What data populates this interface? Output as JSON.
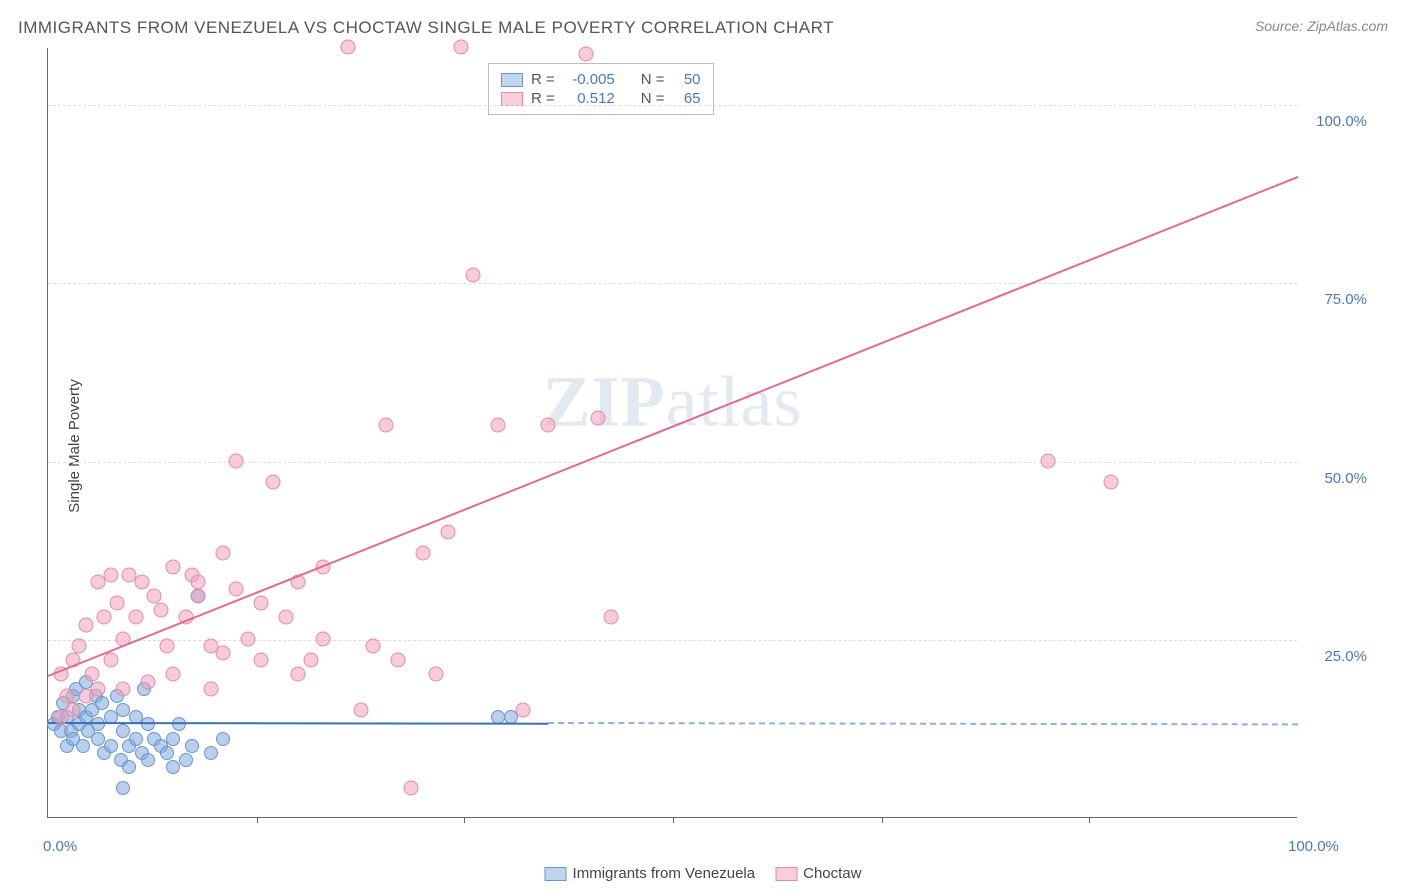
{
  "title": "IMMIGRANTS FROM VENEZUELA VS CHOCTAW SINGLE MALE POVERTY CORRELATION CHART",
  "source": "Source: ZipAtlas.com",
  "ylabel": "Single Male Poverty",
  "watermark_bold": "ZIP",
  "watermark_rest": "atlas",
  "chart": {
    "type": "scatter",
    "xlim": [
      0,
      100
    ],
    "ylim": [
      0,
      108
    ],
    "y_ticks": [
      25,
      50,
      75,
      100
    ],
    "y_tick_labels": [
      "25.0%",
      "50.0%",
      "75.0%",
      "100.0%"
    ],
    "x_ticks": [
      0,
      50,
      100
    ],
    "x_tick_labels": [
      "0.0%",
      "",
      "100.0%"
    ],
    "x_minor_ticks": [
      16.7,
      33.3,
      50,
      66.7,
      83.3
    ],
    "background_color": "#ffffff",
    "grid_color": "#dddddd",
    "axis_color": "#666666",
    "series": [
      {
        "name": "Immigrants from Venezuela",
        "color_fill": "rgba(128,170,220,0.55)",
        "color_stroke": "#6b95cf",
        "marker_size": 14,
        "R": "-0.005",
        "N": "50",
        "trend": {
          "x1": 0,
          "y1": 13.5,
          "x2": 40,
          "y2": 13.4,
          "color": "#3a6fb5",
          "width": 2
        },
        "trend_extrapolate": {
          "x1": 40,
          "y1": 13.4,
          "x2": 100,
          "y2": 13.2,
          "color": "#8fb0d8",
          "dash": true
        },
        "points": [
          [
            0.5,
            13
          ],
          [
            0.8,
            14
          ],
          [
            1,
            12
          ],
          [
            1.2,
            16
          ],
          [
            1.5,
            10
          ],
          [
            1.5,
            14
          ],
          [
            1.8,
            12
          ],
          [
            2,
            17
          ],
          [
            2,
            11
          ],
          [
            2.2,
            18
          ],
          [
            2.5,
            13
          ],
          [
            2.5,
            15
          ],
          [
            2.8,
            10
          ],
          [
            3,
            14
          ],
          [
            3,
            19
          ],
          [
            3.2,
            12
          ],
          [
            3.5,
            15
          ],
          [
            3.8,
            17
          ],
          [
            4,
            11
          ],
          [
            4,
            13
          ],
          [
            4.3,
            16
          ],
          [
            4.5,
            9
          ],
          [
            5,
            14
          ],
          [
            5,
            10
          ],
          [
            5.5,
            17
          ],
          [
            5.8,
            8
          ],
          [
            6,
            12
          ],
          [
            6,
            15
          ],
          [
            6.5,
            10
          ],
          [
            6.5,
            7
          ],
          [
            7,
            14
          ],
          [
            7,
            11
          ],
          [
            7.5,
            9
          ],
          [
            7.7,
            18
          ],
          [
            8,
            8
          ],
          [
            8,
            13
          ],
          [
            8.5,
            11
          ],
          [
            9,
            10
          ],
          [
            9.5,
            9
          ],
          [
            10,
            11
          ],
          [
            10,
            7
          ],
          [
            10.5,
            13
          ],
          [
            11,
            8
          ],
          [
            11.5,
            10
          ],
          [
            12,
            31
          ],
          [
            13,
            9
          ],
          [
            14,
            11
          ],
          [
            6,
            4
          ],
          [
            36,
            14
          ],
          [
            37,
            14
          ]
        ]
      },
      {
        "name": "Choctaw",
        "color_fill": "rgba(240,160,185,0.55)",
        "color_stroke": "#e48ba8",
        "marker_size": 15,
        "R": "0.512",
        "N": "65",
        "trend": {
          "x1": 0,
          "y1": 20,
          "x2": 100,
          "y2": 90,
          "color": "#e06a94",
          "width": 2
        },
        "points": [
          [
            1,
            14
          ],
          [
            1,
            20
          ],
          [
            1.5,
            17
          ],
          [
            2,
            15
          ],
          [
            2,
            22
          ],
          [
            2.5,
            24
          ],
          [
            3,
            17
          ],
          [
            3,
            27
          ],
          [
            3.5,
            20
          ],
          [
            4,
            33
          ],
          [
            4,
            18
          ],
          [
            4.5,
            28
          ],
          [
            5,
            34
          ],
          [
            5,
            22
          ],
          [
            5.5,
            30
          ],
          [
            6,
            25
          ],
          [
            6.5,
            34
          ],
          [
            7,
            28
          ],
          [
            7.5,
            33
          ],
          [
            8,
            19
          ],
          [
            8.5,
            31
          ],
          [
            9,
            29
          ],
          [
            9.5,
            24
          ],
          [
            10,
            20
          ],
          [
            10,
            35
          ],
          [
            11,
            28
          ],
          [
            11.5,
            34
          ],
          [
            12,
            31
          ],
          [
            13,
            18
          ],
          [
            13,
            24
          ],
          [
            14,
            37
          ],
          [
            14,
            23
          ],
          [
            15,
            32
          ],
          [
            15,
            50
          ],
          [
            16,
            25
          ],
          [
            17,
            30
          ],
          [
            17,
            22
          ],
          [
            18,
            47
          ],
          [
            19,
            28
          ],
          [
            20,
            20
          ],
          [
            20,
            33
          ],
          [
            21,
            22
          ],
          [
            22,
            25
          ],
          [
            22,
            35
          ],
          [
            24,
            108
          ],
          [
            25,
            15
          ],
          [
            26,
            24
          ],
          [
            27,
            55
          ],
          [
            28,
            22
          ],
          [
            30,
            37
          ],
          [
            31,
            20
          ],
          [
            32,
            40
          ],
          [
            33,
            108
          ],
          [
            34,
            76
          ],
          [
            36,
            55
          ],
          [
            38,
            15
          ],
          [
            40,
            55
          ],
          [
            43,
            107
          ],
          [
            44,
            56
          ],
          [
            45,
            28
          ],
          [
            29,
            4
          ],
          [
            80,
            50
          ],
          [
            85,
            47
          ],
          [
            12,
            33
          ],
          [
            6,
            18
          ]
        ]
      }
    ]
  },
  "stats_box": {
    "rows": [
      {
        "swatch": "blue",
        "R_label": "R =",
        "R": "-0.005",
        "N_label": "N =",
        "N": "50"
      },
      {
        "swatch": "pink",
        "R_label": "R =",
        "R": "0.512",
        "N_label": "N =",
        "N": "65"
      }
    ]
  },
  "legend": [
    {
      "swatch": "blue",
      "label": "Immigrants from Venezuela"
    },
    {
      "swatch": "pink",
      "label": "Choctaw"
    }
  ]
}
